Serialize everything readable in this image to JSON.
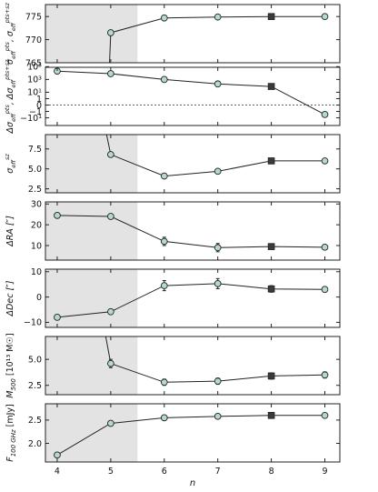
{
  "colors": {
    "marker_fill": "#b4d9cf",
    "marker_stroke": "#222222",
    "highlight_fill": "#3a3a3a",
    "shade": "#e3e3e3",
    "line": "#222222"
  },
  "chart_data": [
    {
      "type": "line",
      "panel": "sigma-eff",
      "ylabel": "σ_eff^pts, σ_eff^pts+sz",
      "ylabel_parts": {
        "base": "σ",
        "sup1": "pts",
        "sup2": "pts+sz",
        "sep": ", ",
        "sub": "eff"
      },
      "x": [
        5,
        6,
        7,
        8,
        9
      ],
      "y": [
        771.5,
        774.7,
        774.9,
        775.0,
        775.0
      ],
      "ylim": [
        765,
        777.6
      ],
      "yticks": [
        765,
        770,
        775
      ],
      "ytick_labels": [
        "765",
        "770",
        "775"
      ],
      "yerr": [
        0,
        0,
        0,
        0,
        0
      ],
      "extends_below": true,
      "shade_xmax": 5.5
    },
    {
      "type": "line",
      "panel": "delta-sigma-eff",
      "ylabel": "Δσ_eff^pts, Δσ_eff^pts+sz",
      "ylabel_parts": {
        "base": "Δσ",
        "sup1": "pts",
        "sup2": "pts+sz",
        "sep": ", ",
        "sub": "eff"
      },
      "yscale": "symlog",
      "x": [
        4,
        5,
        6,
        7,
        8,
        9
      ],
      "y": [
        20000,
        8000,
        1000,
        200,
        80,
        -3
      ],
      "yticks": [
        -10,
        -1,
        0,
        1,
        10,
        1000,
        100000
      ],
      "ytick_labels": [
        "−10¹",
        "−1",
        "0",
        "1",
        "10¹",
        "10³",
        "10⁵"
      ],
      "zero_line": true,
      "yerr": [
        0,
        0,
        0,
        0,
        0,
        0
      ],
      "shade_xmax": null
    },
    {
      "type": "line",
      "panel": "sigma-eff-sz",
      "ylabel": "σ_eff^sz",
      "ylabel_parts": {
        "base": "σ",
        "sup1": "sz",
        "sup2": "",
        "sep": "",
        "sub": "eff"
      },
      "x": [
        5,
        6,
        7,
        8,
        9
      ],
      "y": [
        6.8,
        4.1,
        4.7,
        6.0,
        6.0
      ],
      "ylim": [
        2.0,
        9.3
      ],
      "yticks": [
        2.5,
        5.0,
        7.5
      ],
      "ytick_labels": [
        "2.5",
        "5.0",
        "7.5"
      ],
      "yerr": [
        0,
        0,
        0,
        0,
        0
      ],
      "extends_above": true,
      "shade_xmax": 5.5
    },
    {
      "type": "line",
      "panel": "delta-ra",
      "ylabel": "ΔRA [″]",
      "x": [
        4,
        5,
        6,
        7,
        8,
        9
      ],
      "y": [
        24.5,
        24.0,
        12.0,
        9.0,
        9.5,
        9.2
      ],
      "ylim": [
        3,
        31
      ],
      "yticks": [
        10,
        20,
        30
      ],
      "ytick_labels": [
        "10",
        "20",
        "30"
      ],
      "yerr": [
        0,
        0,
        2.0,
        2.0,
        1.0,
        0.5
      ],
      "shade_xmax": 5.5
    },
    {
      "type": "line",
      "panel": "delta-dec",
      "ylabel": "ΔDec [″]",
      "x": [
        4,
        5,
        6,
        7,
        8,
        9
      ],
      "y": [
        -8.0,
        -5.8,
        4.5,
        5.3,
        3.2,
        3.0
      ],
      "ylim": [
        -12,
        11
      ],
      "yticks": [
        -10,
        0,
        10
      ],
      "ytick_labels": [
        "−10",
        "0",
        "10"
      ],
      "yerr": [
        0,
        0,
        2.0,
        2.0,
        1.3,
        0.7
      ],
      "shade_xmax": 5.5
    },
    {
      "type": "line",
      "panel": "m500",
      "ylabel": "M500 [10¹³ M☉]",
      "ylabel_parts": {
        "base": "M",
        "sub": "500",
        "unit": " [10¹³ M☉]"
      },
      "x": [
        5,
        6,
        7,
        8,
        9
      ],
      "y": [
        4.6,
        2.8,
        2.9,
        3.4,
        3.5
      ],
      "ylim": [
        1.6,
        7.2
      ],
      "yticks": [
        2.5,
        5.0
      ],
      "ytick_labels": [
        "2.5",
        "5.0"
      ],
      "yerr": [
        0.4,
        0.3,
        0.3,
        0.3,
        0.3
      ],
      "extends_above": true,
      "shade_xmax": 5.5
    },
    {
      "type": "line",
      "panel": "flux-100ghz",
      "ylabel": "F100 GHz [mJy]",
      "ylabel_parts": {
        "base": "F",
        "sub": "100 GHz",
        "unit": " [mJy]"
      },
      "x": [
        4,
        5,
        6,
        7,
        8,
        9
      ],
      "y": [
        1.75,
        2.43,
        2.55,
        2.58,
        2.6,
        2.6
      ],
      "ylim": [
        1.6,
        2.85
      ],
      "yticks": [
        2.0,
        2.5
      ],
      "ytick_labels": [
        "2.0",
        "2.5"
      ],
      "yerr": [
        0,
        0,
        0,
        0,
        0,
        0
      ],
      "shade_xmax": 5.5
    }
  ],
  "x_axis": {
    "label": "n",
    "xlim": [
      3.78,
      9.28
    ],
    "ticks": [
      4,
      5,
      6,
      7,
      8,
      9
    ],
    "tick_labels": [
      "4",
      "5",
      "6",
      "7",
      "8",
      "9"
    ]
  },
  "highlight_x": 8
}
